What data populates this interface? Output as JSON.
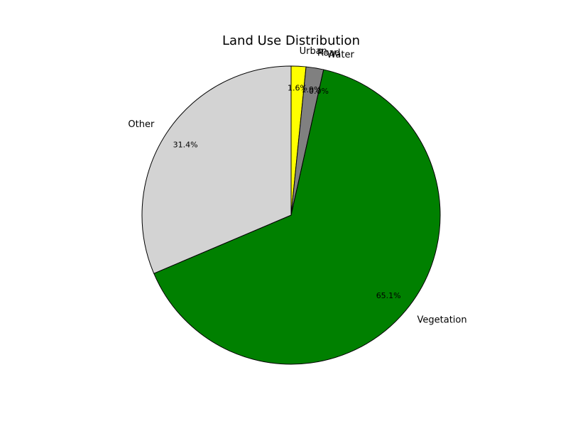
{
  "chart_data": {
    "type": "pie",
    "title": "Land Use Distribution",
    "start_angle_deg": 90,
    "direction": "clockwise",
    "slices": [
      {
        "label": "Urban",
        "value": 1.6,
        "pct_label": "1.6%",
        "color": "#ffff00"
      },
      {
        "label": "Road",
        "value": 1.9,
        "pct_label": "1.9%",
        "color": "#808080"
      },
      {
        "label": "Water",
        "value": 0.0,
        "pct_label": "0.0%",
        "color": "#0000ff"
      },
      {
        "label": "Vegetation",
        "value": 65.1,
        "pct_label": "65.1%",
        "color": "#008000"
      },
      {
        "label": "Other",
        "value": 31.4,
        "pct_label": "31.4%",
        "color": "#d3d3d3"
      }
    ]
  }
}
